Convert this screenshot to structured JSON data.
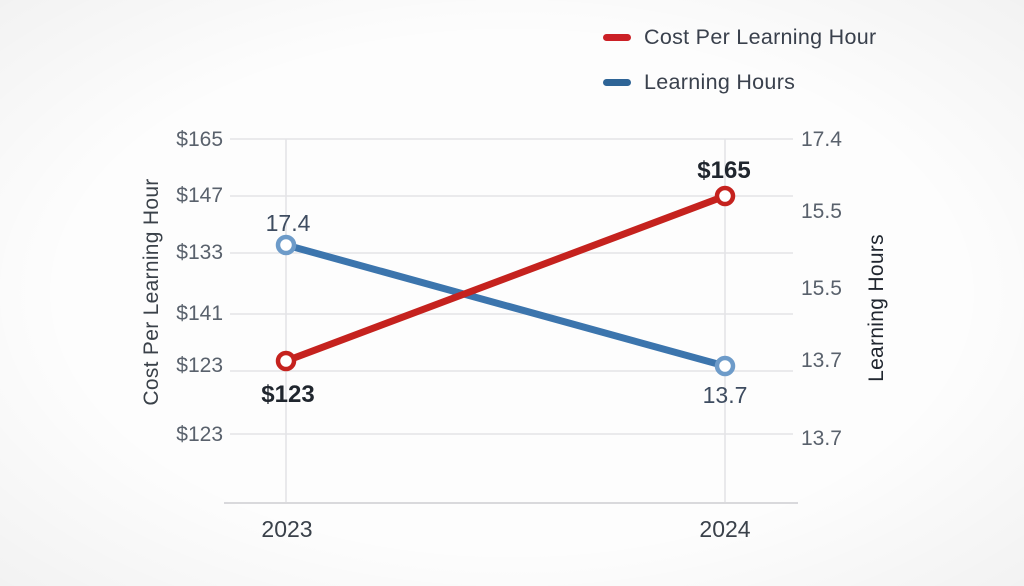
{
  "chart_data": {
    "type": "line",
    "title": "",
    "categories": [
      "2023",
      "2024"
    ],
    "series": [
      {
        "name": "Cost Per Learning Hour",
        "axis": "left",
        "values": [
          123,
          165
        ],
        "point_labels": [
          "$123",
          "$165"
        ],
        "color": "#c5221e",
        "marker_color": "#c5221e"
      },
      {
        "name": "Learning Hours",
        "axis": "right",
        "values": [
          17.4,
          13.7
        ],
        "point_labels": [
          "17.4",
          "13.7"
        ],
        "color": "#3c75ad",
        "marker_color": "#6d9bc9"
      }
    ],
    "left_axis": {
      "title": "Cost Per Learning Hour",
      "ticks": [
        "$165",
        "$147",
        "$133",
        "$141",
        "$123",
        "$123"
      ]
    },
    "right_axis": {
      "title": "Learning Hours",
      "ticks": [
        "17.4",
        "15.5",
        "15.5",
        "13.7",
        "13.7"
      ]
    },
    "legend": {
      "position": "top-right",
      "items": [
        {
          "label": "Cost Per Learning Hour",
          "color": "#cb2026"
        },
        {
          "label": "Learning Hours",
          "color": "#2e6496"
        }
      ]
    },
    "grid": true,
    "colors": {
      "gridline": "#e4e4e7",
      "axis_line": "#d9d9dc",
      "tick_text": "#59616c"
    }
  }
}
